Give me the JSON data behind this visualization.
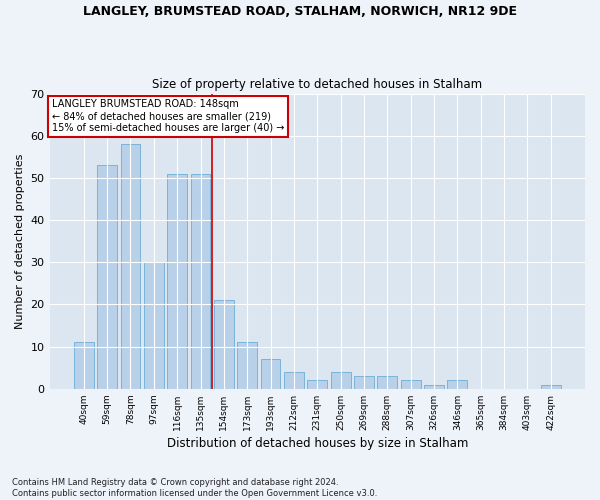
{
  "title": "LANGLEY, BRUMSTEAD ROAD, STALHAM, NORWICH, NR12 9DE",
  "subtitle": "Size of property relative to detached houses in Stalham",
  "xlabel": "Distribution of detached houses by size in Stalham",
  "ylabel": "Number of detached properties",
  "categories": [
    "40sqm",
    "59sqm",
    "78sqm",
    "97sqm",
    "116sqm",
    "135sqm",
    "154sqm",
    "173sqm",
    "193sqm",
    "212sqm",
    "231sqm",
    "250sqm",
    "269sqm",
    "288sqm",
    "307sqm",
    "326sqm",
    "346sqm",
    "365sqm",
    "384sqm",
    "403sqm",
    "422sqm"
  ],
  "values": [
    11,
    53,
    58,
    30,
    51,
    51,
    21,
    11,
    7,
    4,
    2,
    4,
    3,
    3,
    2,
    1,
    2,
    0,
    0,
    0,
    1
  ],
  "bar_color": "#b8d0e8",
  "bar_edgecolor": "#6baed6",
  "vline_color": "#cc0000",
  "vline_x": 5.5,
  "annotation_text": "LANGLEY BRUMSTEAD ROAD: 148sqm\n← 84% of detached houses are smaller (219)\n15% of semi-detached houses are larger (40) →",
  "annotation_box_color": "#ffffff",
  "annotation_box_edgecolor": "#cc0000",
  "ylim": [
    0,
    70
  ],
  "yticks": [
    0,
    10,
    20,
    30,
    40,
    50,
    60,
    70
  ],
  "footer": "Contains HM Land Registry data © Crown copyright and database right 2024.\nContains public sector information licensed under the Open Government Licence v3.0.",
  "bg_color": "#eef2f9",
  "plot_bg_color": "#dce6f0"
}
